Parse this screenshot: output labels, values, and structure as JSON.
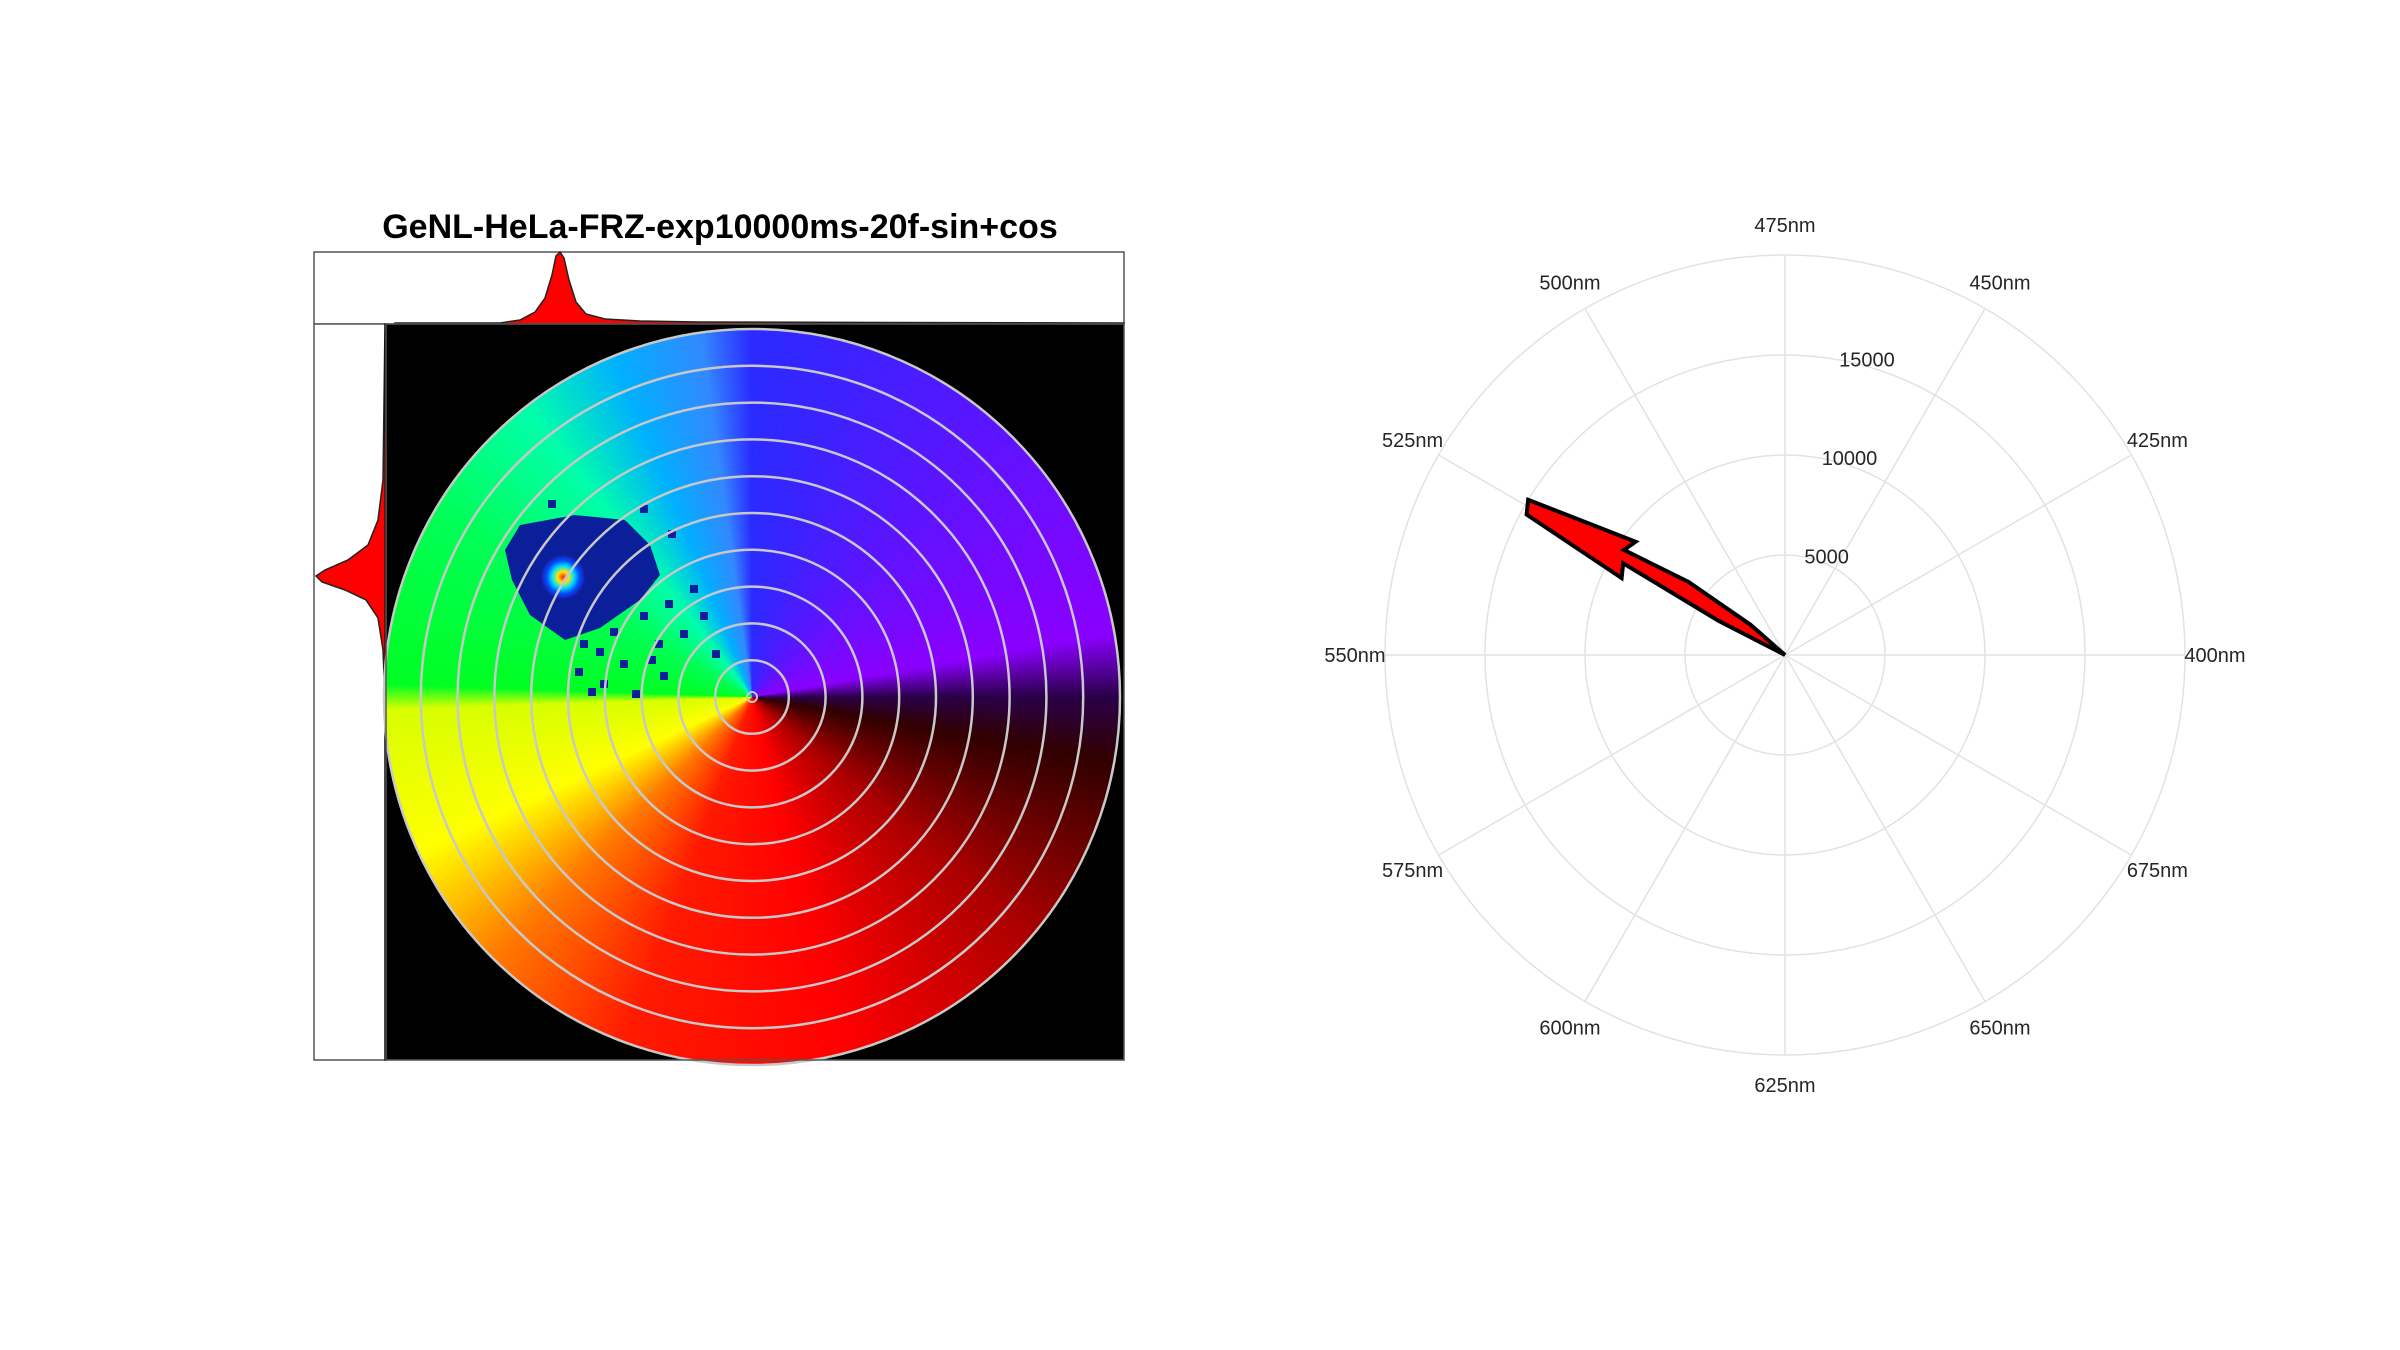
{
  "figure": {
    "title": "GeNL-HeLa-FRZ-exp10000ms-20f-sin+cos",
    "phasor_panel": {
      "type": "heatmap",
      "colormap": "spectral hue wheel (blue/violet top-right, cyan/green top-left, yellow bottom-left, red/dark-red bottom-right)",
      "rings": 10,
      "grid": true,
      "cluster": {
        "peak": "bright (red/yellow core)",
        "halo": "dark blue"
      },
      "histogram_color": "#ff0000"
    }
  },
  "chart_data": {
    "type": "polar",
    "mark": "compass arrow",
    "arrow_color": "#ff0000",
    "arrow": {
      "angle_label": "525nm",
      "magnitude": 15000
    },
    "theta_labels": [
      "400nm",
      "425nm",
      "450nm",
      "475nm",
      "500nm",
      "525nm",
      "550nm",
      "575nm",
      "600nm",
      "625nm",
      "650nm",
      "675nm"
    ],
    "r_ticks": [
      "5000",
      "10000",
      "15000"
    ],
    "r_tick_values": [
      5000,
      10000,
      15000,
      20000
    ],
    "rlim": [
      0,
      20000
    ],
    "grid": true
  }
}
